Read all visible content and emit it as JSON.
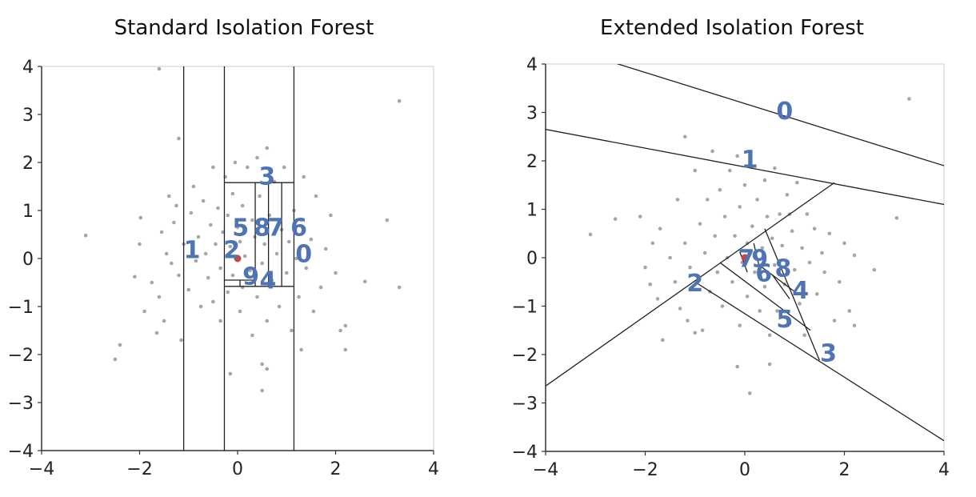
{
  "colors": {
    "points": "#a6a6a6",
    "anomaly": "#c8473f",
    "cuts": "#222222",
    "labels": "#4f74b3",
    "frame": "#cccccc"
  },
  "chart_data": [
    {
      "type": "scatter",
      "title": "Standard Isolation Forest",
      "xlim": [
        -4,
        4
      ],
      "ylim": [
        -4,
        4
      ],
      "xticks": [
        "−4",
        "−2",
        "0",
        "2",
        "4"
      ],
      "yticks": [
        "4",
        "3",
        "2",
        "1",
        "0",
        "−1",
        "−2",
        "−3",
        "−4"
      ],
      "anomaly": [
        0.0,
        0.0
      ],
      "cuts": [
        {
          "x1": -1.1,
          "y1": -4,
          "x2": -1.1,
          "y2": 4
        },
        {
          "x1": -0.27,
          "y1": -4,
          "x2": -0.27,
          "y2": 4
        },
        {
          "x1": 1.15,
          "y1": -4,
          "x2": 1.15,
          "y2": 4
        },
        {
          "x1": -0.27,
          "y1": 1.58,
          "x2": 1.15,
          "y2": 1.58
        },
        {
          "x1": -0.27,
          "y1": -0.58,
          "x2": 1.15,
          "y2": -0.58
        },
        {
          "x1": 0.36,
          "y1": -0.58,
          "x2": 0.36,
          "y2": 1.58
        },
        {
          "x1": 0.63,
          "y1": -0.58,
          "x2": 0.63,
          "y2": 1.58
        },
        {
          "x1": 0.9,
          "y1": -0.58,
          "x2": 0.9,
          "y2": 1.58
        },
        {
          "x1": -0.27,
          "y1": -0.45,
          "x2": 0.36,
          "y2": -0.45
        },
        {
          "x1": 0.05,
          "y1": -0.58,
          "x2": 0.05,
          "y2": -0.45
        }
      ],
      "region_labels": [
        {
          "text": "1",
          "x": -0.93,
          "y": 0.15
        },
        {
          "text": "2",
          "x": -0.12,
          "y": 0.15
        },
        {
          "text": "3",
          "x": 0.6,
          "y": 1.68
        },
        {
          "text": "5",
          "x": 0.06,
          "y": 0.62
        },
        {
          "text": "8",
          "x": 0.5,
          "y": 0.62
        },
        {
          "text": "7",
          "x": 0.78,
          "y": 0.62
        },
        {
          "text": "6",
          "x": 1.25,
          "y": 0.62
        },
        {
          "text": "0",
          "x": 1.35,
          "y": 0.07
        },
        {
          "text": "9",
          "x": 0.27,
          "y": -0.4
        },
        {
          "text": "4",
          "x": 0.62,
          "y": -0.48
        }
      ],
      "points": [
        [
          -3.1,
          0.48
        ],
        [
          -2.5,
          -2.1
        ],
        [
          -2.4,
          -1.8
        ],
        [
          -2.1,
          -0.38
        ],
        [
          -2.0,
          0.3
        ],
        [
          -1.98,
          0.85
        ],
        [
          -1.9,
          -1.1
        ],
        [
          -1.75,
          -0.5
        ],
        [
          -1.65,
          -1.55
        ],
        [
          -1.6,
          -0.8
        ],
        [
          -1.55,
          0.55
        ],
        [
          -1.5,
          -1.3
        ],
        [
          -1.45,
          0.1
        ],
        [
          -1.4,
          1.3
        ],
        [
          -1.35,
          -0.1
        ],
        [
          -1.3,
          0.75
        ],
        [
          -1.25,
          1.1
        ],
        [
          -1.2,
          -0.35
        ],
        [
          -1.15,
          -1.7
        ],
        [
          -1.2,
          2.5
        ],
        [
          -1.1,
          0.3
        ],
        [
          -1.0,
          -0.65
        ],
        [
          -0.95,
          0.95
        ],
        [
          -0.9,
          1.5
        ],
        [
          -0.85,
          -0.05
        ],
        [
          -0.8,
          0.45
        ],
        [
          -0.75,
          -1.0
        ],
        [
          -0.7,
          1.2
        ],
        [
          -0.65,
          0.1
        ],
        [
          -0.6,
          -0.4
        ],
        [
          -0.55,
          0.7
        ],
        [
          -0.5,
          1.9
        ],
        [
          -0.5,
          -0.9
        ],
        [
          -0.45,
          0.3
        ],
        [
          -0.4,
          1.05
        ],
        [
          -0.35,
          -0.2
        ],
        [
          -0.35,
          -1.3
        ],
        [
          -0.3,
          0.55
        ],
        [
          -0.25,
          1.7
        ],
        [
          -0.2,
          -0.7
        ],
        [
          -0.2,
          0.9
        ],
        [
          -0.15,
          0.25
        ],
        [
          -0.1,
          1.35
        ],
        [
          -0.1,
          -0.35
        ],
        [
          -0.05,
          2.0
        ],
        [
          0.0,
          0.65
        ],
        [
          0.05,
          -1.1
        ],
        [
          0.05,
          0.35
        ],
        [
          0.1,
          1.1
        ],
        [
          0.1,
          -0.6
        ],
        [
          0.15,
          0.05
        ],
        [
          0.2,
          1.9
        ],
        [
          0.25,
          -0.25
        ],
        [
          0.3,
          0.8
        ],
        [
          0.3,
          -1.6
        ],
        [
          0.35,
          0.45
        ],
        [
          0.4,
          2.1
        ],
        [
          0.4,
          -0.8
        ],
        [
          0.45,
          1.3
        ],
        [
          0.5,
          -0.1
        ],
        [
          0.5,
          -2.2
        ],
        [
          0.55,
          0.3
        ],
        [
          0.6,
          2.3
        ],
        [
          0.6,
          -1.3
        ],
        [
          0.65,
          0.9
        ],
        [
          0.7,
          -0.45
        ],
        [
          0.75,
          1.6
        ],
        [
          0.8,
          0.1
        ],
        [
          0.85,
          -1.0
        ],
        [
          0.9,
          0.6
        ],
        [
          0.95,
          1.9
        ],
        [
          1.0,
          -0.3
        ],
        [
          1.05,
          0.35
        ],
        [
          1.1,
          -1.5
        ],
        [
          1.15,
          1.0
        ],
        [
          1.2,
          0.0
        ],
        [
          1.25,
          -0.8
        ],
        [
          1.3,
          0.8
        ],
        [
          1.35,
          1.7
        ],
        [
          1.4,
          -0.2
        ],
        [
          1.5,
          0.4
        ],
        [
          1.55,
          -1.1
        ],
        [
          1.6,
          1.3
        ],
        [
          1.7,
          -0.6
        ],
        [
          1.8,
          0.2
        ],
        [
          1.9,
          0.9
        ],
        [
          2.0,
          -0.3
        ],
        [
          2.2,
          -1.4
        ],
        [
          2.2,
          -1.9
        ],
        [
          2.1,
          -1.5
        ],
        [
          2.6,
          -0.48
        ],
        [
          3.05,
          0.8
        ],
        [
          3.3,
          -0.6
        ],
        [
          3.3,
          3.28
        ],
        [
          -1.6,
          3.95
        ],
        [
          0.5,
          -2.75
        ],
        [
          0.6,
          -2.3
        ],
        [
          -0.15,
          -2.4
        ],
        [
          1.3,
          -1.9
        ]
      ]
    },
    {
      "type": "scatter",
      "title": "Extended Isolation Forest",
      "xlim": [
        -4,
        4
      ],
      "ylim": [
        -4,
        4
      ],
      "xticks": [
        "−4",
        "−2",
        "0",
        "2",
        "4"
      ],
      "yticks": [
        "4",
        "3",
        "2",
        "1",
        "0",
        "−1",
        "−2",
        "−3",
        "−4"
      ],
      "anomaly": [
        0.0,
        0.0
      ],
      "cuts": [
        {
          "x1": -2.7,
          "y1": 4.05,
          "x2": 4,
          "y2": 1.9
        },
        {
          "x1": -4,
          "y1": 2.65,
          "x2": 4,
          "y2": 1.1
        },
        {
          "x1": -4,
          "y1": -2.65,
          "x2": 1.8,
          "y2": 1.55
        },
        {
          "x1": -1.0,
          "y1": -0.5,
          "x2": 4,
          "y2": -3.78
        },
        {
          "x1": 0.4,
          "y1": 0.6,
          "x2": 1.5,
          "y2": -2.12
        },
        {
          "x1": -0.5,
          "y1": -0.1,
          "x2": 1.32,
          "y2": -1.5
        },
        {
          "x1": -0.1,
          "y1": 0.12,
          "x2": 0.05,
          "y2": -0.3
        },
        {
          "x1": 0.18,
          "y1": 0.3,
          "x2": 0.35,
          "y2": -0.45
        },
        {
          "x1": 0.35,
          "y1": -0.2,
          "x2": 1.0,
          "y2": -0.7
        },
        {
          "x1": 0.55,
          "y1": -0.35,
          "x2": 0.9,
          "y2": -0.85
        }
      ],
      "region_labels": [
        {
          "text": "0",
          "x": 0.8,
          "y": 3.0
        },
        {
          "text": "1",
          "x": 0.1,
          "y": 2.0
        },
        {
          "text": "2",
          "x": -1.0,
          "y": -0.55
        },
        {
          "text": "7",
          "x": 0.03,
          "y": -0.05
        },
        {
          "text": "9",
          "x": 0.3,
          "y": -0.05
        },
        {
          "text": "6",
          "x": 0.38,
          "y": -0.35
        },
        {
          "text": "8",
          "x": 0.77,
          "y": -0.25
        },
        {
          "text": "4",
          "x": 1.12,
          "y": -0.7
        },
        {
          "text": "5",
          "x": 0.8,
          "y": -1.3
        },
        {
          "text": "3",
          "x": 1.68,
          "y": -2.0
        }
      ],
      "points": [
        [
          -3.1,
          0.48
        ],
        [
          -2.6,
          0.8
        ],
        [
          -2.1,
          0.85
        ],
        [
          -2.0,
          -0.2
        ],
        [
          -1.9,
          -0.55
        ],
        [
          -1.85,
          0.3
        ],
        [
          -1.75,
          -0.85
        ],
        [
          -1.7,
          0.6
        ],
        [
          -1.65,
          -1.7
        ],
        [
          -1.5,
          0.0
        ],
        [
          -1.4,
          -0.5
        ],
        [
          -1.35,
          1.2
        ],
        [
          -1.3,
          -1.05
        ],
        [
          -1.2,
          0.3
        ],
        [
          -1.15,
          -1.3
        ],
        [
          -1.1,
          -0.2
        ],
        [
          -1.0,
          1.8
        ],
        [
          -0.9,
          0.7
        ],
        [
          -0.85,
          -1.5
        ],
        [
          -0.8,
          0.1
        ],
        [
          -0.75,
          1.2
        ],
        [
          -0.7,
          -0.7
        ],
        [
          -0.65,
          2.2
        ],
        [
          -0.6,
          0.45
        ],
        [
          -0.55,
          -0.3
        ],
        [
          -0.5,
          1.4
        ],
        [
          -0.45,
          -1.0
        ],
        [
          -0.4,
          0.85
        ],
        [
          -0.35,
          0.0
        ],
        [
          -0.3,
          1.8
        ],
        [
          -0.25,
          -0.5
        ],
        [
          -0.2,
          0.45
        ],
        [
          -0.15,
          2.1
        ],
        [
          -0.1,
          -1.4
        ],
        [
          -0.1,
          1.05
        ],
        [
          -0.05,
          -0.1
        ],
        [
          0.0,
          1.5
        ],
        [
          0.05,
          0.3
        ],
        [
          0.05,
          -0.8
        ],
        [
          0.1,
          1.9
        ],
        [
          0.15,
          0.65
        ],
        [
          0.2,
          -0.3
        ],
        [
          0.25,
          1.2
        ],
        [
          0.3,
          -1.1
        ],
        [
          0.35,
          0.2
        ],
        [
          0.4,
          1.6
        ],
        [
          0.4,
          -0.6
        ],
        [
          0.45,
          0.85
        ],
        [
          0.5,
          -1.6
        ],
        [
          0.55,
          0.4
        ],
        [
          0.6,
          1.85
        ],
        [
          0.6,
          -0.15
        ],
        [
          0.65,
          -1.1
        ],
        [
          0.7,
          0.9
        ],
        [
          0.75,
          0.25
        ],
        [
          0.8,
          -0.55
        ],
        [
          0.85,
          1.3
        ],
        [
          0.9,
          -1.35
        ],
        [
          0.95,
          0.55
        ],
        [
          1.0,
          -0.25
        ],
        [
          1.05,
          1.55
        ],
        [
          1.1,
          -0.95
        ],
        [
          1.15,
          0.2
        ],
        [
          1.2,
          -1.6
        ],
        [
          1.25,
          0.9
        ],
        [
          1.3,
          -0.1
        ],
        [
          1.4,
          0.6
        ],
        [
          1.45,
          -0.75
        ],
        [
          1.55,
          0.1
        ],
        [
          1.6,
          -0.3
        ],
        [
          1.7,
          0.5
        ],
        [
          1.8,
          -1.3
        ],
        [
          1.9,
          -0.5
        ],
        [
          2.0,
          0.3
        ],
        [
          2.2,
          -1.4
        ],
        [
          2.2,
          0.05
        ],
        [
          2.1,
          -1.1
        ],
        [
          2.6,
          -0.25
        ],
        [
          3.05,
          0.82
        ],
        [
          3.3,
          3.28
        ],
        [
          -0.15,
          -2.25
        ],
        [
          0.1,
          -2.8
        ],
        [
          0.5,
          -2.2
        ],
        [
          -1.0,
          -1.55
        ],
        [
          -1.2,
          2.5
        ],
        [
          0.9,
          0.9
        ]
      ]
    }
  ]
}
